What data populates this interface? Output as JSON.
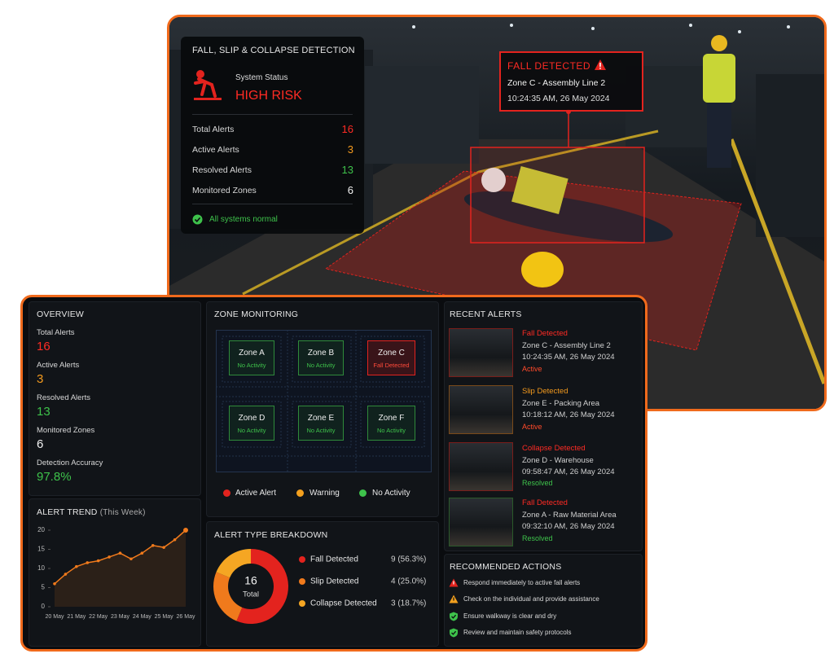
{
  "detection_card": {
    "title": "FALL, SLIP & COLLAPSE DETECTION",
    "status_label": "System Status",
    "status": "HIGH RISK",
    "stats": [
      {
        "label": "Total Alerts",
        "value": 16
      },
      {
        "label": "Active Alerts",
        "value": 3
      },
      {
        "label": "Resolved Alerts",
        "value": 13
      },
      {
        "label": "Monitored Zones",
        "value": 6
      }
    ],
    "footer": "All systems normal"
  },
  "callout": {
    "title": "FALL DETECTED",
    "zone": "Zone C - Assembly Line 2",
    "time": "10:24:35 AM, 26 May 2024"
  },
  "overview": {
    "title": "OVERVIEW",
    "items": [
      {
        "label": "Total Alerts",
        "value": 16
      },
      {
        "label": "Active Alerts",
        "value": 3
      },
      {
        "label": "Resolved Alerts",
        "value": 13
      },
      {
        "label": "Monitored Zones",
        "value": 6
      },
      {
        "label": "Detection Accuracy",
        "value": "97.8%"
      }
    ]
  },
  "zone_monitoring": {
    "title": "ZONE MONITORING",
    "zones": [
      {
        "name": "Zone A",
        "status": "No Activity"
      },
      {
        "name": "Zone B",
        "status": "No Activity"
      },
      {
        "name": "Zone C",
        "status": "Fall Detected"
      },
      {
        "name": "Zone D",
        "status": "No Activity"
      },
      {
        "name": "Zone E",
        "status": "No Activity"
      },
      {
        "name": "Zone F",
        "status": "No Activity"
      }
    ],
    "legend": [
      "Active Alert",
      "Warning",
      "No Activity"
    ]
  },
  "recent_alerts": {
    "title": "RECENT ALERTS",
    "items": [
      {
        "type": "Fall Detected",
        "zone": "Zone C - Assembly Line 2",
        "time": "10:24:35 AM, 26 May 2024",
        "status": "Active"
      },
      {
        "type": "Slip Detected",
        "zone": "Zone E - Packing Area",
        "time": "10:18:12 AM, 26 May 2024",
        "status": "Active"
      },
      {
        "type": "Collapse Detected",
        "zone": "Zone D - Warehouse",
        "time": "09:58:47 AM, 26 May 2024",
        "status": "Resolved"
      },
      {
        "type": "Fall Detected",
        "zone": "Zone A - Raw Material Area",
        "time": "09:32:10 AM, 26 May 2024",
        "status": "Resolved"
      }
    ]
  },
  "recommended_actions": {
    "title": "RECOMMENDED ACTIONS",
    "items": [
      "Respond immediately to active fall alerts",
      "Check on the individual and provide assistance",
      "Ensure walkway is clear and dry",
      "Review and maintain safety protocols"
    ]
  },
  "chart_data": [
    {
      "type": "line",
      "title": "ALERT TREND",
      "subtitle": "(This Week)",
      "color": "#f07a1c",
      "categories": [
        "20 May",
        null,
        "21 May",
        null,
        "22 May",
        null,
        "23 May",
        null,
        "24 May",
        null,
        "25 May",
        null,
        "26 May"
      ],
      "values": [
        6,
        8.5,
        10.5,
        11.5,
        12,
        13,
        14,
        12.5,
        14,
        16,
        15.5,
        17.5,
        20
      ],
      "ylim": [
        0,
        20
      ],
      "yticks": [
        0,
        5,
        10,
        15,
        20
      ]
    },
    {
      "type": "pie",
      "title": "ALERT TYPE BREAKDOWN",
      "center_value": 16,
      "center_label": "Total",
      "categories": [
        "Fall Detected",
        "Slip Detected",
        "Collapse Detected"
      ],
      "values": [
        9,
        4,
        3
      ],
      "value_labels": [
        "9 (56.3%)",
        "4 (25.0%)",
        "3 (18.7%)"
      ],
      "colors": [
        "#e3231e",
        "#f07a1c",
        "#f5a623"
      ]
    }
  ]
}
